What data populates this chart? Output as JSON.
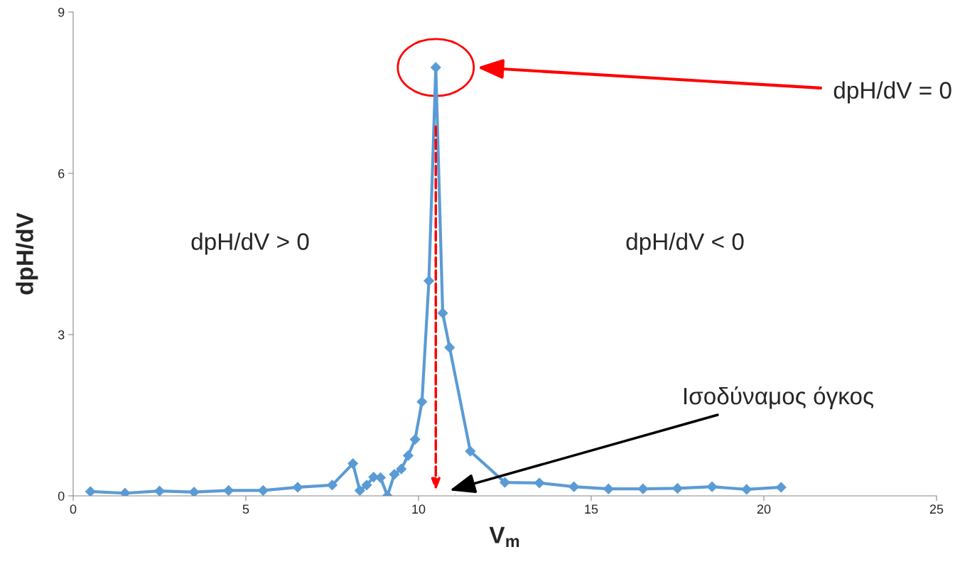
{
  "chart_data": {
    "type": "line",
    "xlabel": "V$_{m}$",
    "ylabel": "dpH/dV",
    "x": [
      0.5,
      1.5,
      2.5,
      3.5,
      4.5,
      5.5,
      6.5,
      7.5,
      8.1,
      8.3,
      8.5,
      8.7,
      8.9,
      9.1,
      9.3,
      9.5,
      9.7,
      9.9,
      10.1,
      10.3,
      10.5,
      10.7,
      10.9,
      11.5,
      12.5,
      13.5,
      14.5,
      15.5,
      16.5,
      17.5,
      18.5,
      19.5,
      20.5
    ],
    "series": [
      {
        "color": "#5b9bd5",
        "values": [
          0.08,
          0.05,
          0.09,
          0.07,
          0.1,
          0.1,
          0.16,
          0.2,
          0.6,
          0.1,
          0.2,
          0.35,
          0.34,
          0.0,
          0.4,
          0.5,
          0.75,
          1.05,
          1.75,
          4.0,
          7.97,
          3.4,
          2.76,
          0.83,
          0.25,
          0.24,
          0.17,
          0.13,
          0.13,
          0.14,
          0.17,
          0.12,
          0.16
        ]
      }
    ],
    "xlim": [
      0,
      25
    ],
    "xticks": [
      0,
      5,
      10,
      15,
      20,
      25
    ],
    "ylim": [
      0,
      9
    ],
    "yticks": [
      0,
      3,
      6,
      9
    ],
    "marker": "diamond",
    "line_style": "solid",
    "grid": false,
    "legend": false,
    "annotations": [
      "dpH/dV = 0",
      "dpH/dV > 0",
      "dpH/dV < 0",
      "Ισοδύναμος όγκος"
    ]
  }
}
